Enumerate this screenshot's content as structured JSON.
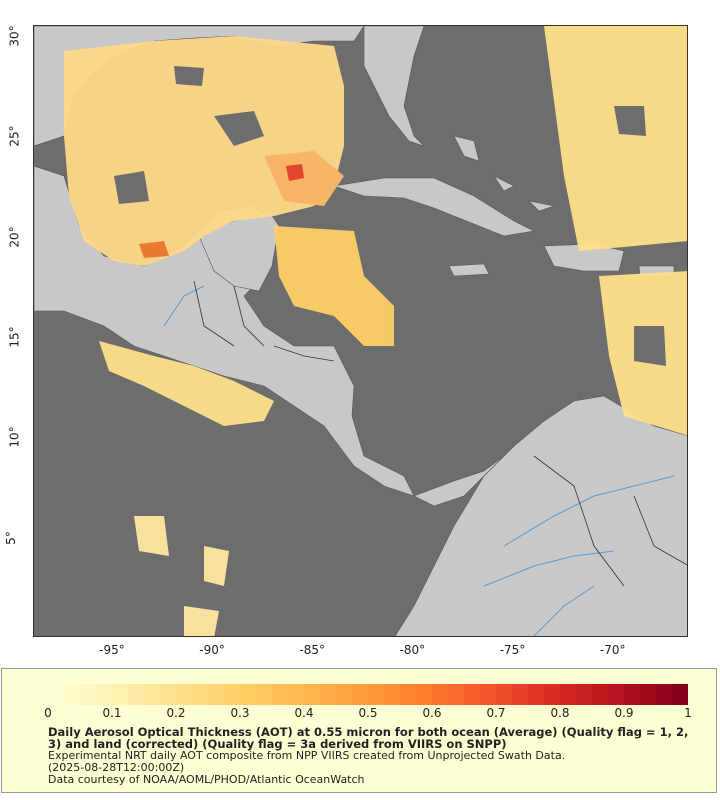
{
  "map": {
    "x_ticks": [
      "-95°",
      "-90°",
      "-85°",
      "-80°",
      "-75°",
      "-70°"
    ],
    "x_tick_values": [
      -95,
      -90,
      -85,
      -80,
      -75,
      -70
    ],
    "y_ticks": [
      "5°",
      "10°",
      "15°",
      "20°",
      "25°",
      "30°"
    ],
    "y_tick_values": [
      5,
      10,
      15,
      20,
      25,
      30
    ],
    "lon_range": [
      -99,
      -66.3
    ],
    "lat_range": [
      0.1,
      30.6
    ],
    "colors": {
      "ocean_no_data": "#6d6d6d",
      "land": "#c8c8c8",
      "rivers": "#5a9bd5",
      "borders": "#333333"
    }
  },
  "colorbar": {
    "ticks": [
      "0",
      "0.1",
      "0.2",
      "0.3",
      "0.4",
      "0.5",
      "0.6",
      "0.7",
      "0.8",
      "0.9",
      "1"
    ],
    "range": [
      0,
      1
    ],
    "colors": [
      "#ffffd4",
      "#fff0b0",
      "#ffe08a",
      "#ffcf66",
      "#ffb74d",
      "#ff9a3c",
      "#ff7a2e",
      "#f2522a",
      "#d92a22",
      "#b5121e",
      "#85001a"
    ]
  },
  "caption": {
    "line1": "Daily Aerosol Optical Thickness (AOT) at 0.55 micron for both ocean (Average) (Quality flag = 1, 2, 3) and land (corrected) (Quality flag = 3a derived from VIIRS on SNPP)",
    "line2": "Experimental NRT daily AOT composite from NPP VIIRS created from Unprojected Swath Data.",
    "line3": "(2025-08-28T12:00:00Z)",
    "line4": "Data courtesy of NOAA/AOML/PHOD/Atlantic OceanWatch"
  }
}
